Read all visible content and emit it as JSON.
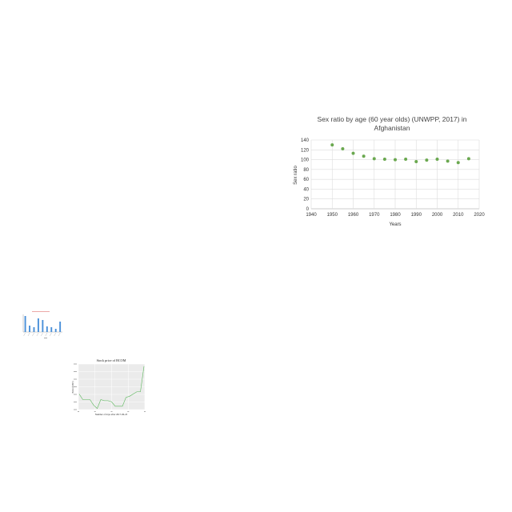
{
  "chart_data": [
    {
      "type": "scatter",
      "title": "Sex ratio by age (60 year olds) (UNWPP, 2017) in Afghanistan",
      "title_lines": [
        "Sex ratio by age (60 year olds) (UNWPP, 2017) in",
        "Afghanistan"
      ],
      "xlabel": "Years",
      "ylabel": "Sex ratio",
      "xlim": [
        1940,
        2020
      ],
      "ylim": [
        0,
        140
      ],
      "xticks": [
        1940,
        1950,
        1960,
        1970,
        1980,
        1990,
        2000,
        2010,
        2020
      ],
      "yticks": [
        0,
        20,
        40,
        60,
        80,
        100,
        120,
        140
      ],
      "grid": true,
      "color": "#6aa84f",
      "x": [
        1950,
        1955,
        1960,
        1965,
        1970,
        1975,
        1980,
        1985,
        1990,
        1995,
        2000,
        2005,
        2010,
        2015
      ],
      "y": [
        130,
        122,
        113,
        107,
        102,
        101,
        100,
        101,
        96,
        99,
        101,
        97,
        94,
        102
      ]
    },
    {
      "type": "bar",
      "color": "#4a90d9",
      "values": [
        20,
        8,
        6,
        17,
        15,
        7,
        6,
        4,
        13
      ]
    },
    {
      "type": "line",
      "title": "Stock price of BCOM",
      "xlabel": "Number of days after 2017-06-23",
      "ylabel": "Price (USD)",
      "grid": true,
      "color": "#5cb85c",
      "x": [
        0,
        1,
        2,
        3,
        4,
        5,
        6,
        7,
        8,
        9,
        10,
        11,
        12,
        13,
        14,
        15,
        16,
        17,
        18
      ],
      "y": [
        40.3,
        39.8,
        39.8,
        39.8,
        39.3,
        39.0,
        39.8,
        39.7,
        39.7,
        39.6,
        39.2,
        39.2,
        39.2,
        40.0,
        40.1,
        40.3,
        40.5,
        40.5,
        42.8
      ],
      "ylim": [
        38.9,
        43.0
      ],
      "xlim": [
        0,
        18
      ]
    }
  ]
}
